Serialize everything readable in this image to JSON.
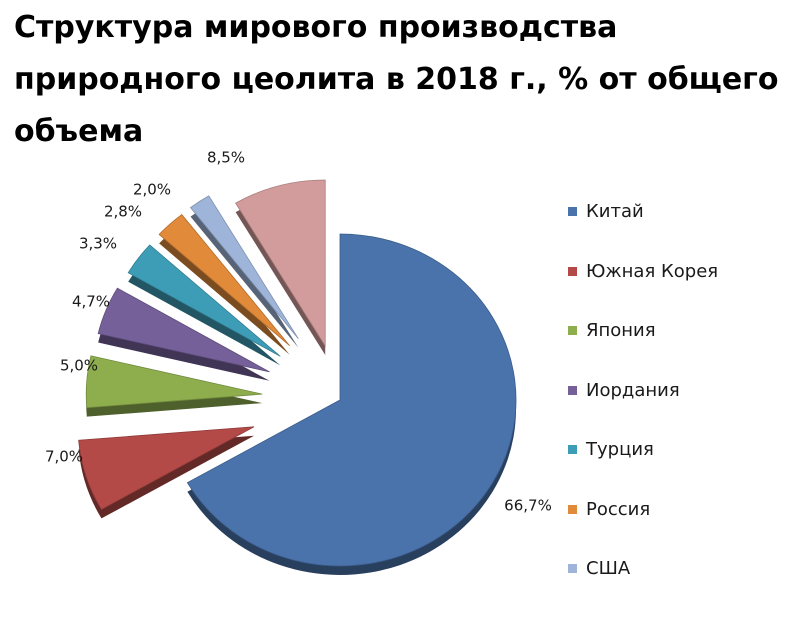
{
  "chart_data": {
    "type": "pie",
    "title": "Структура мирового производства природного цеолита в 2018 г., % от общего объема",
    "categories": [
      "Китай",
      "Южная Корея",
      "Япония",
      "Иордания",
      "Турция",
      "Россия",
      "США",
      ""
    ],
    "values": [
      66.7,
      7.0,
      5.0,
      4.7,
      3.3,
      2.8,
      2.0,
      8.5
    ],
    "labels": [
      "66,7%",
      "7,0%",
      "5,0%",
      "4,7%",
      "3,3%",
      "2,8%",
      "2,0%",
      "8,5%"
    ],
    "colors": [
      "#4a73ab",
      "#b34a47",
      "#8eae4e",
      "#76609a",
      "#3e9db6",
      "#e08a3a",
      "#9eb4d8",
      "#d19c9b"
    ],
    "exploded": [
      false,
      true,
      true,
      true,
      true,
      true,
      true,
      true
    ],
    "legend_position": "right",
    "grid": false
  }
}
